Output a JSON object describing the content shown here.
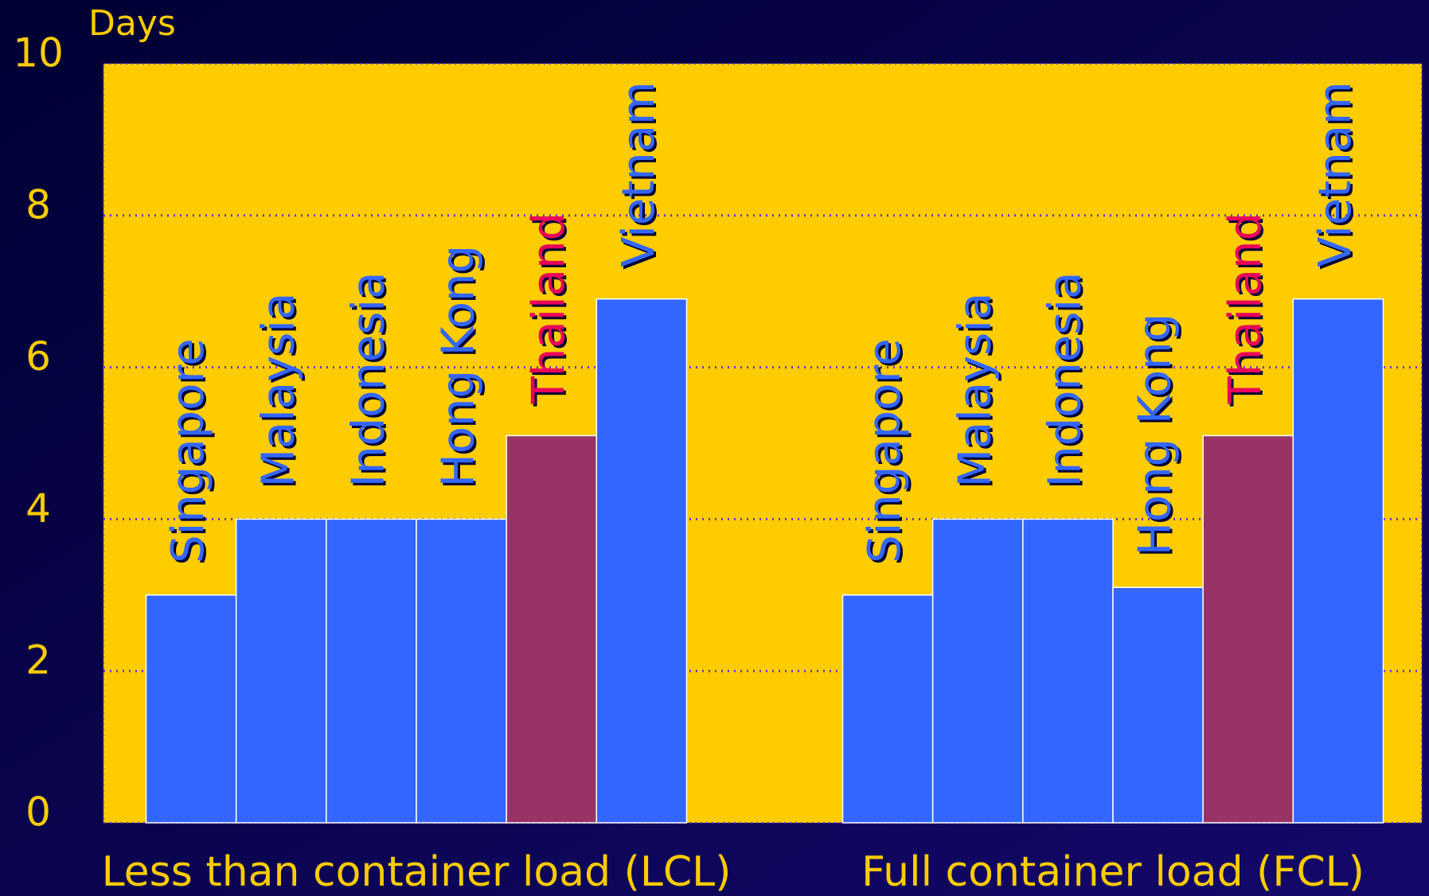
{
  "chart_data": {
    "type": "bar",
    "ylabel": "Days",
    "categories": [
      "Less than container load (LCL)",
      "Full container load (FCL)"
    ],
    "series": [
      {
        "name": "Singapore",
        "color": "#3366ff",
        "label_color": "#3366ff",
        "values": [
          3,
          3
        ]
      },
      {
        "name": "Malaysia",
        "color": "#3366ff",
        "label_color": "#3366ff",
        "values": [
          4,
          4
        ]
      },
      {
        "name": "Indonesia",
        "color": "#3366ff",
        "label_color": "#3366ff",
        "values": [
          4,
          4
        ]
      },
      {
        "name": "Hong Kong",
        "color": "#3366ff",
        "label_color": "#3366ff",
        "values": [
          4,
          3.1
        ]
      },
      {
        "name": "Thailand",
        "color": "#993366",
        "label_color": "#e8005a",
        "values": [
          5.1,
          5.1
        ]
      },
      {
        "name": "Vietnam",
        "color": "#3366ff",
        "label_color": "#3366ff",
        "values": [
          6.9,
          6.9
        ]
      }
    ],
    "ylim": [
      0,
      10
    ],
    "yticks": [
      0,
      2,
      4,
      6,
      8,
      10
    ],
    "grid": true
  }
}
